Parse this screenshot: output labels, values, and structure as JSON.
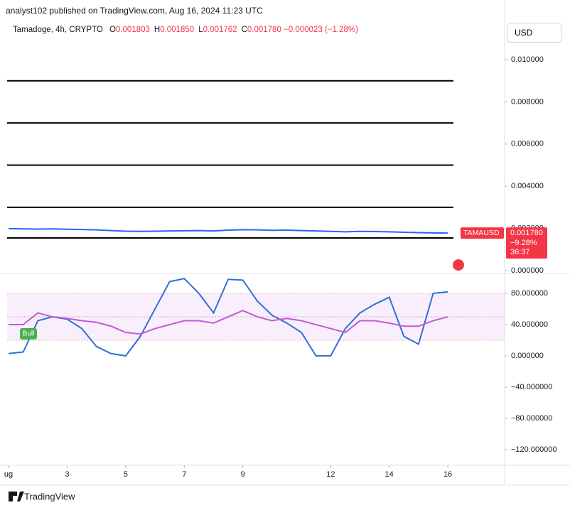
{
  "header": {
    "publisher": "analyst102 published on TradingView.com, Aug 16, 2024 11:23 UTC",
    "symbol": "Tamadoge, 4h, CRYPTO",
    "ohlc": [
      {
        "key": "O",
        "value": "0.001803"
      },
      {
        "key": "H",
        "value": "0.001850"
      },
      {
        "key": "L",
        "value": "0.001762"
      },
      {
        "key": "C",
        "value": "0.001780"
      }
    ],
    "change": "−0.000023 (−1.28%)",
    "currency": "USD"
  },
  "footer": {
    "brand": "TradingView"
  },
  "chart_data": [
    {
      "type": "line",
      "color": "#2962ff",
      "price_color": "#f23645",
      "x": [
        1,
        1.5,
        2,
        2.5,
        3,
        3.5,
        4,
        4.5,
        5,
        5.5,
        6,
        6.5,
        7,
        7.5,
        8,
        8.5,
        9,
        9.5,
        10,
        10.5,
        11,
        11.5,
        12,
        12.5,
        13,
        13.5,
        14,
        14.5,
        15,
        15.5,
        16
      ],
      "values": [
        0.00199,
        0.00198,
        0.00197,
        0.00198,
        0.00196,
        0.00195,
        0.00193,
        0.0019,
        0.00187,
        0.00186,
        0.00187,
        0.00188,
        0.00189,
        0.0019,
        0.00188,
        0.00192,
        0.00194,
        0.00193,
        0.00191,
        0.00192,
        0.0019,
        0.00188,
        0.00186,
        0.00184,
        0.00186,
        0.00185,
        0.00184,
        0.00182,
        0.0018,
        0.00179,
        0.00178
      ],
      "levels": [
        0.009,
        0.007,
        0.005,
        0.003,
        0.00155
      ],
      "xlim": [
        0.95,
        17.94
      ],
      "ylim": [
        -0.000135,
        0.01182
      ],
      "yticks": [
        {
          "value": 0.01,
          "label": "0.010000"
        },
        {
          "value": 0.008,
          "label": "0.008000"
        },
        {
          "value": 0.006,
          "label": "0.006000"
        },
        {
          "value": 0.004,
          "label": "0.004000"
        },
        {
          "value": 0.002,
          "label": "0.002000"
        },
        {
          "value": 0,
          "label": "0.000000"
        }
      ],
      "badge": {
        "symbol": "TAMAUSD",
        "price": "0.001780",
        "change": "−9.28%",
        "countdown": "36:37"
      }
    },
    {
      "type": "line",
      "x": [
        1,
        1.5,
        2,
        2.5,
        3,
        3.5,
        4,
        4.5,
        5,
        5.5,
        6,
        6.5,
        7,
        7.5,
        8,
        8.5,
        9,
        9.5,
        10,
        10.5,
        11,
        11.5,
        12,
        12.5,
        13,
        13.5,
        14,
        14.5,
        15,
        15.5,
        16
      ],
      "series": [
        {
          "color": "#2f6fd6",
          "values": [
            3,
            5,
            45,
            50,
            47,
            35,
            12,
            3,
            0,
            25,
            60,
            95,
            99,
            80,
            55,
            98,
            97,
            70,
            52,
            42,
            30,
            0,
            0,
            35,
            55,
            66,
            75,
            25,
            15,
            80,
            82
          ]
        },
        {
          "color": "#c25ad6",
          "values": [
            40,
            40,
            55,
            50,
            48,
            45,
            43,
            38,
            30,
            28,
            35,
            40,
            45,
            45,
            42,
            50,
            58,
            50,
            45,
            48,
            45,
            40,
            35,
            30,
            45,
            45,
            42,
            38,
            38,
            45,
            50
          ]
        }
      ],
      "band": [
        20,
        80
      ],
      "midline": 50,
      "annotation": "Bull",
      "xlim": [
        0.95,
        17.94
      ],
      "ylim": [
        -140,
        105.5
      ],
      "yticks": [
        {
          "value": 80,
          "label": "80.000000"
        },
        {
          "value": 40,
          "label": "40.000000"
        },
        {
          "value": 0,
          "label": "0.000000"
        },
        {
          "value": -40,
          "label": "−40.000000"
        },
        {
          "value": -80,
          "label": "−80.000000"
        },
        {
          "value": -120,
          "label": "−120.000000"
        }
      ],
      "xticks": [
        {
          "value": 1,
          "label": "ug"
        },
        3,
        5,
        7,
        9,
        12,
        14,
        16
      ]
    }
  ]
}
